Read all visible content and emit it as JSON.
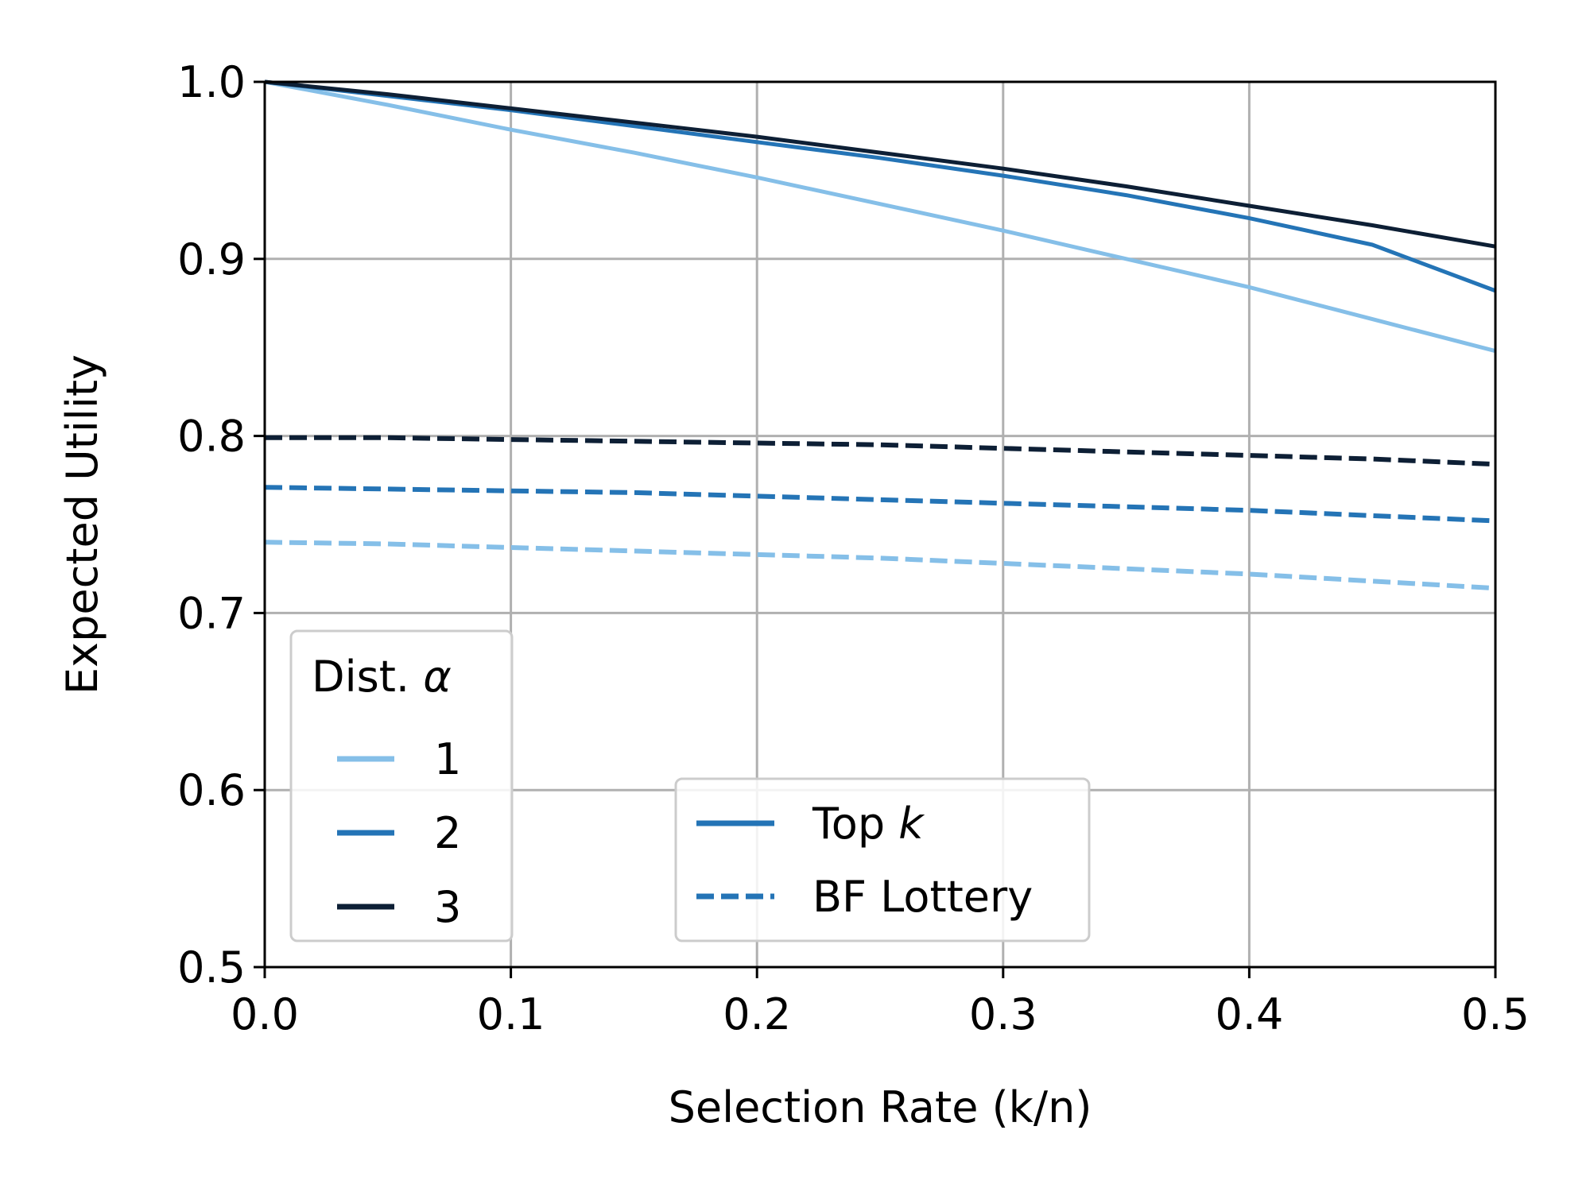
{
  "chart_data": {
    "type": "line",
    "xlabel": "Selection Rate (k/n)",
    "ylabel": "Expected Utility",
    "xlim": [
      0.0,
      0.5
    ],
    "ylim": [
      0.5,
      1.0
    ],
    "xticks": [
      "0.0",
      "0.1",
      "0.2",
      "0.3",
      "0.4",
      "0.5"
    ],
    "yticks": [
      "0.5",
      "0.6",
      "0.7",
      "0.8",
      "0.9",
      "1.0"
    ],
    "grid": true,
    "x": [
      0.0,
      0.05,
      0.1,
      0.15,
      0.2,
      0.25,
      0.3,
      0.35,
      0.4,
      0.45,
      0.5
    ],
    "series": [
      {
        "name": "1",
        "method": "Top k",
        "color": "#85bfe8",
        "style": "solid",
        "values": [
          1.0,
          0.987,
          0.973,
          0.96,
          0.946,
          0.931,
          0.916,
          0.9,
          0.884,
          0.866,
          0.848
        ]
      },
      {
        "name": "2",
        "method": "Top k",
        "color": "#2474b6",
        "style": "solid",
        "values": [
          1.0,
          0.992,
          0.984,
          0.975,
          0.966,
          0.957,
          0.947,
          0.936,
          0.923,
          0.908,
          0.882
        ]
      },
      {
        "name": "3",
        "method": "Top k",
        "color": "#0d1f35",
        "style": "solid",
        "values": [
          1.0,
          0.993,
          0.985,
          0.977,
          0.969,
          0.96,
          0.951,
          0.941,
          0.93,
          0.919,
          0.907
        ]
      },
      {
        "name": "1",
        "method": "BF Lottery",
        "color": "#85bfe8",
        "style": "dashed",
        "values": [
          0.74,
          0.739,
          0.737,
          0.735,
          0.733,
          0.731,
          0.728,
          0.725,
          0.722,
          0.718,
          0.714
        ]
      },
      {
        "name": "2",
        "method": "BF Lottery",
        "color": "#2474b6",
        "style": "dashed",
        "values": [
          0.771,
          0.77,
          0.769,
          0.768,
          0.766,
          0.764,
          0.762,
          0.76,
          0.758,
          0.755,
          0.752
        ]
      },
      {
        "name": "3",
        "method": "BF Lottery",
        "color": "#0d1f35",
        "style": "dashed",
        "values": [
          0.799,
          0.799,
          0.798,
          0.797,
          0.796,
          0.795,
          0.793,
          0.791,
          0.789,
          0.787,
          0.784
        ]
      }
    ],
    "legend_alpha": {
      "location": "bottom-left",
      "title_text": "Dist. ",
      "title_symbol": "α",
      "entries": [
        {
          "label": "1",
          "color": "#85bfe8"
        },
        {
          "label": "2",
          "color": "#2474b6"
        },
        {
          "label": "3",
          "color": "#0d1f35"
        }
      ]
    },
    "legend_method": {
      "location": "bottom-center",
      "color": "#2474b6",
      "entries": [
        {
          "text": "Top ",
          "italic": "k",
          "style": "solid"
        },
        {
          "text": "BF Lottery",
          "italic": "",
          "style": "dashed"
        }
      ]
    }
  }
}
